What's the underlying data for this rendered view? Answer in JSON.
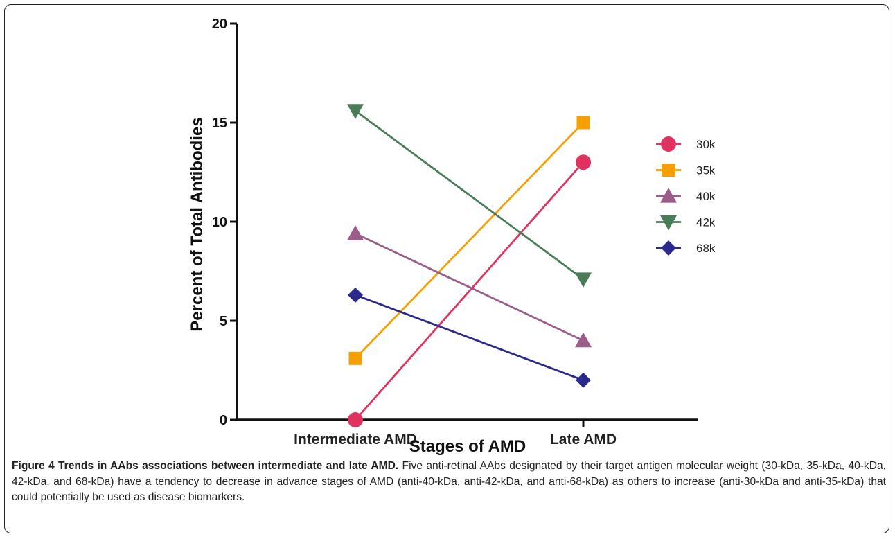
{
  "caption": {
    "title": "Figure 4 Trends in AAbs associations between intermediate and late AMD.",
    "text": "Five anti-retinal AAbs designated by their target antigen molecular weight (30-kDa, 35-kDa, 40-kDa, 42-kDa, and 68-kDa) have a tendency to decrease in advance stages of AMD (anti-40-kDa, anti-42-kDa, and anti-68-kDa) as others to increase (anti-30-kDa and anti-35-kDa) that could potentially be used as disease biomarkers."
  },
  "chart_data": {
    "type": "line",
    "xlabel": "Stages of AMD",
    "ylabel": "Percent of Total Antibodies",
    "categories": [
      "Intermediate AMD",
      "Late AMD"
    ],
    "ylim": [
      0,
      20
    ],
    "yticks": [
      0,
      5,
      10,
      15,
      20
    ],
    "grid": false,
    "legend_position": "right",
    "series": [
      {
        "name": "30k",
        "values": [
          0,
          13
        ],
        "color": "#e0325f",
        "marker": "circle"
      },
      {
        "name": "35k",
        "values": [
          3.1,
          15
        ],
        "color": "#f5a000",
        "marker": "square"
      },
      {
        "name": "40k",
        "values": [
          9.4,
          4
        ],
        "color": "#9b5c8a",
        "marker": "triangle-up"
      },
      {
        "name": "42k",
        "values": [
          15.6,
          7.1
        ],
        "color": "#4a7d57",
        "marker": "triangle-down"
      },
      {
        "name": "68k",
        "values": [
          6.3,
          2
        ],
        "color": "#2b2a8c",
        "marker": "diamond"
      }
    ]
  }
}
